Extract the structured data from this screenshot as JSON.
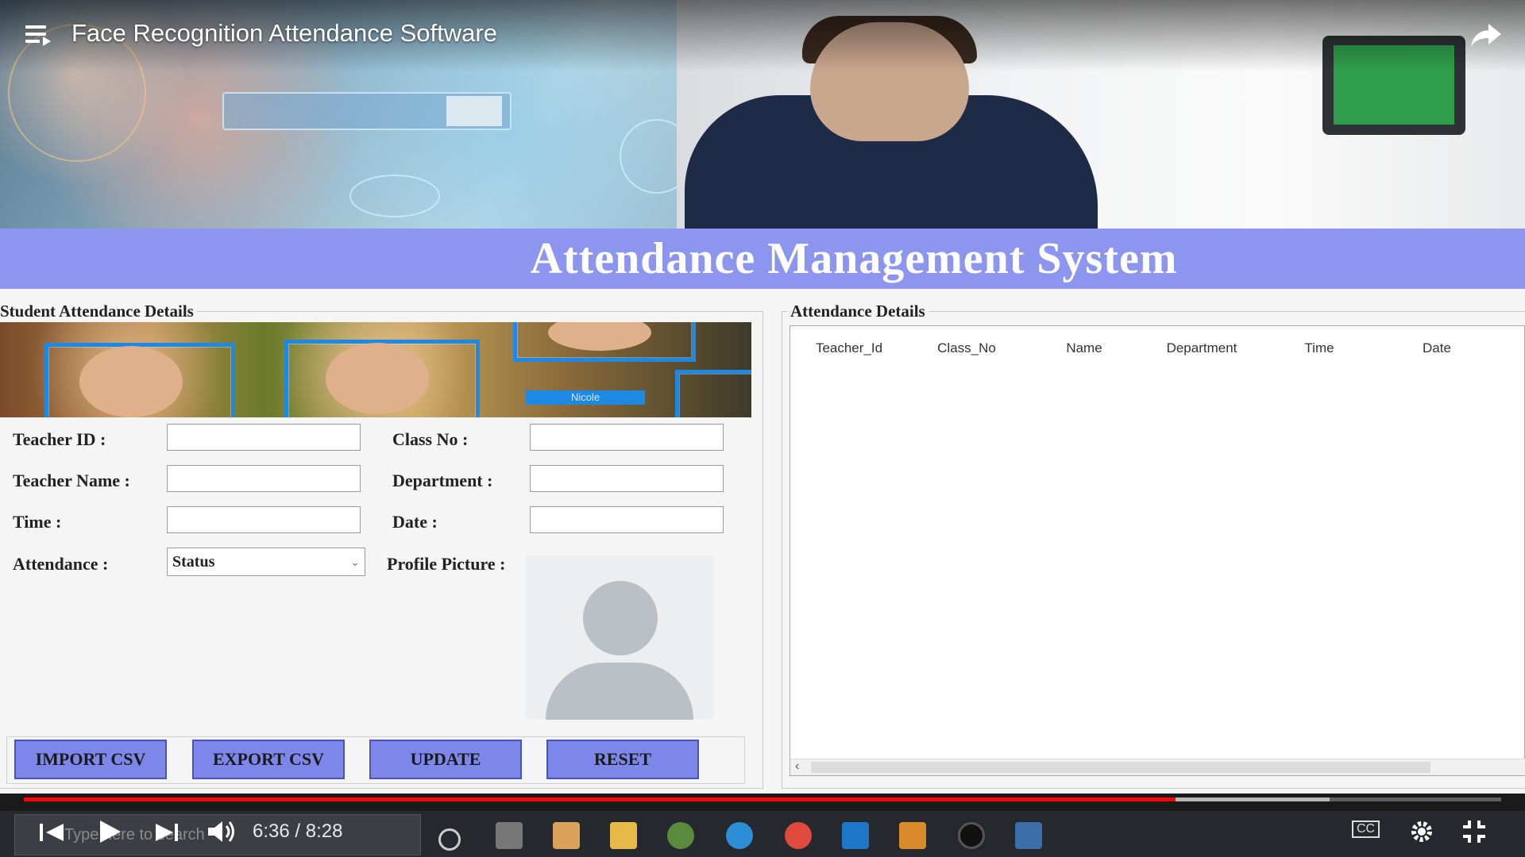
{
  "video": {
    "title": "Face Recognition Attendance Software",
    "current_time": "6:36",
    "duration": "8:28",
    "time_display": "6:36 / 8:28",
    "progress": 0.78
  },
  "app": {
    "header_title": "Attendance Management System",
    "student_section": {
      "title": "Student Attendance Details",
      "banner_tag": "Nicole",
      "fields": {
        "teacher_id_label": "Teacher ID :",
        "class_no_label": "Class No :",
        "teacher_name_label": "Teacher Name :",
        "department_label": "Department :",
        "time_label": "Time :",
        "date_label": "Date :",
        "attendance_label": "Attendance :",
        "profile_picture_label": "Profile Picture :",
        "teacher_id_value": "",
        "class_no_value": "",
        "teacher_name_value": "",
        "department_value": "",
        "time_value": "",
        "date_value": "",
        "attendance_selected": "Status"
      },
      "buttons": {
        "import": "IMPORT CSV",
        "export": "EXPORT CSV",
        "update": "UPDATE",
        "reset": "RESET"
      }
    },
    "attendance_section": {
      "title": "Attendance Details",
      "columns": [
        "Teacher_Id",
        "Class_No",
        "Name",
        "Department",
        "Time",
        "Date"
      ],
      "rows": []
    }
  },
  "taskbar": {
    "search_placeholder": "Type here to search"
  },
  "colors": {
    "header_bg": "#8c96ee",
    "button_bg": "#7d87ea",
    "progress_played": "#ff0000",
    "taskbar_bg": "#25292e"
  }
}
